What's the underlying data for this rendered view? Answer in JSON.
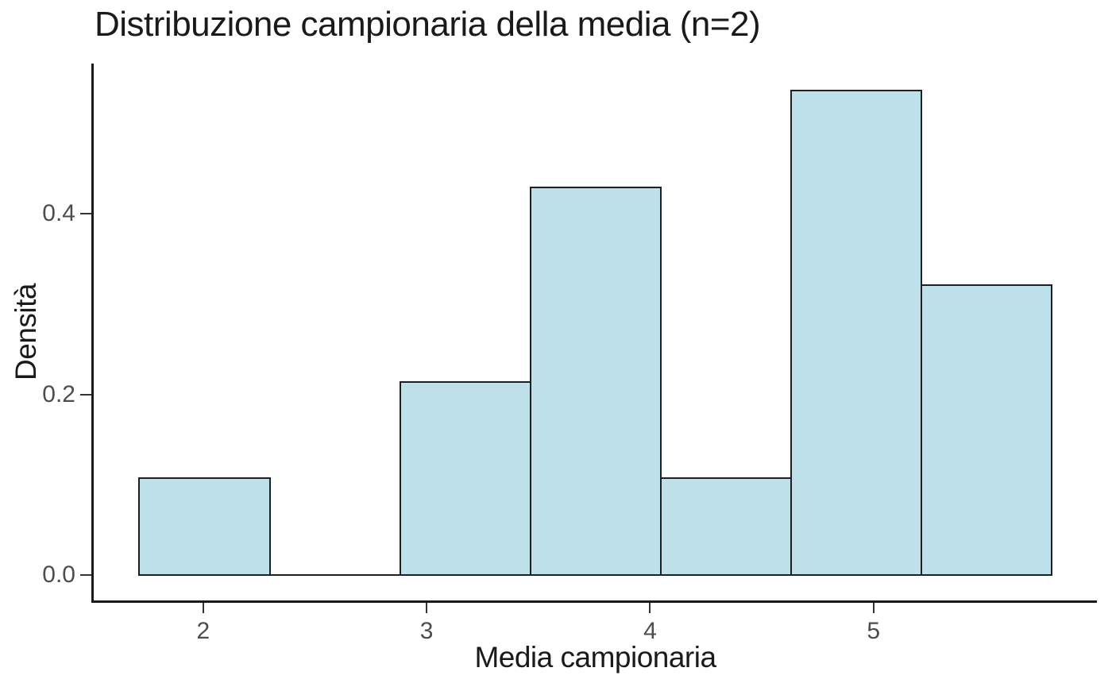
{
  "figure": {
    "background": "#ffffff"
  },
  "style": {
    "axis_color": "#1a1a1a",
    "tick_color": "#333333",
    "tick_label_color": "#4d4d4d",
    "text_color": "#1a1a1a"
  },
  "chart_data": {
    "type": "bar",
    "subtype": "histogram",
    "title": "Distribuzione campionaria della media (n=2)",
    "xlabel": "Media campionaria",
    "ylabel": "Densità",
    "grid": false,
    "legend_position": "none",
    "xlim": [
      1.51,
      6.0
    ],
    "ylim": [
      -0.028,
      0.566
    ],
    "bar_fill": "#BEE0EB",
    "bar_stroke": "#1f1f1f",
    "x_ticks": [
      {
        "value": 2,
        "label": "2"
      },
      {
        "value": 3,
        "label": "3"
      },
      {
        "value": 4,
        "label": "4"
      },
      {
        "value": 5,
        "label": "5"
      }
    ],
    "y_ticks": [
      {
        "value": 0.0,
        "label": "0.0"
      },
      {
        "value": 0.2,
        "label": "0.2"
      },
      {
        "value": 0.4,
        "label": "0.4"
      }
    ],
    "bins": [
      {
        "x0": 1.714,
        "x1": 2.298,
        "density": 0.107
      },
      {
        "x0": 2.298,
        "x1": 2.881,
        "density": 0.0
      },
      {
        "x0": 2.881,
        "x1": 3.464,
        "density": 0.214
      },
      {
        "x0": 3.464,
        "x1": 4.048,
        "density": 0.429
      },
      {
        "x0": 4.048,
        "x1": 4.631,
        "density": 0.107
      },
      {
        "x0": 4.631,
        "x1": 5.214,
        "density": 0.536
      },
      {
        "x0": 5.214,
        "x1": 5.798,
        "density": 0.321
      }
    ]
  }
}
